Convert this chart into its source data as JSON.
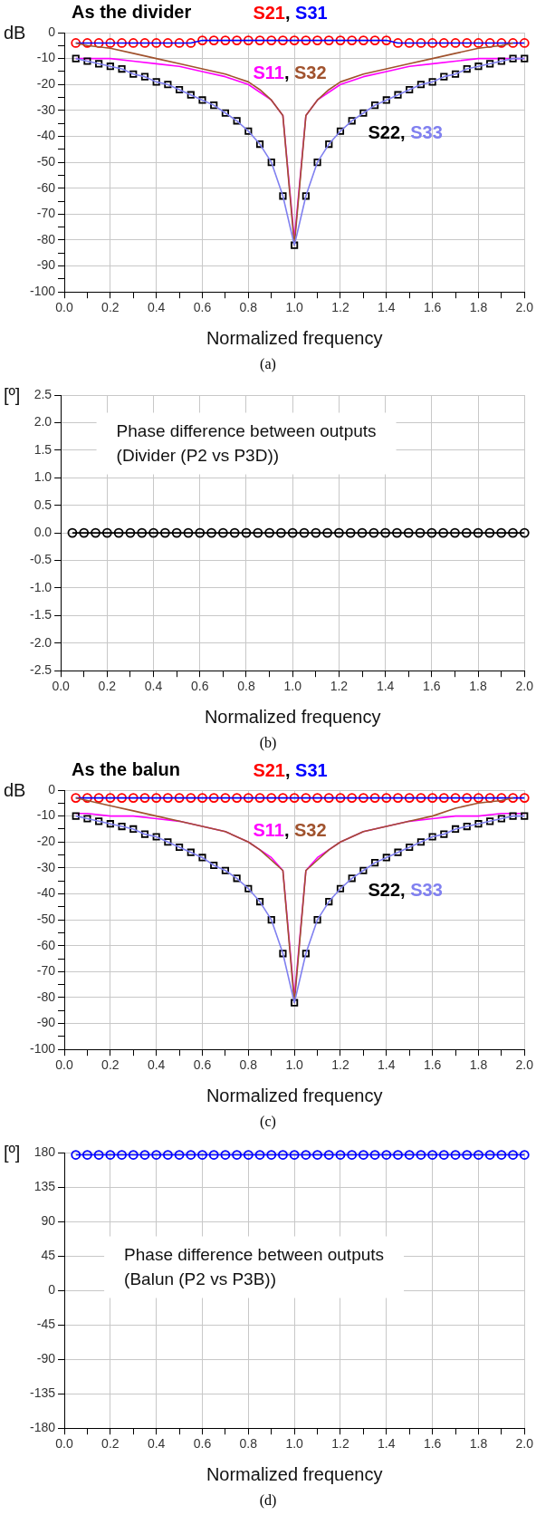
{
  "chart_data": [
    {
      "type": "line",
      "title": "As the divider",
      "xlabel": "Normalized frequency",
      "ylabel": "dB",
      "xlim": [
        0,
        2
      ],
      "ylim": [
        -100,
        0
      ],
      "xticks": [
        {
          "value": 0,
          "label": "0.0"
        },
        {
          "value": 0.1,
          "label": null
        },
        {
          "value": 0.2,
          "label": "0.2"
        },
        {
          "value": 0.3,
          "label": null
        },
        {
          "value": 0.4,
          "label": "0.4"
        },
        {
          "value": 0.5,
          "label": null
        },
        {
          "value": 0.6,
          "label": "0.6"
        },
        {
          "value": 0.7,
          "label": null
        },
        {
          "value": 0.8,
          "label": "0.8"
        },
        {
          "value": 0.9,
          "label": null
        },
        {
          "value": 1,
          "label": "1.0"
        },
        {
          "value": 1.1,
          "label": null
        },
        {
          "value": 1.2,
          "label": "1.2"
        },
        {
          "value": 1.3,
          "label": null
        },
        {
          "value": 1.4,
          "label": "1.4"
        },
        {
          "value": 1.5,
          "label": null
        },
        {
          "value": 1.6,
          "label": "1.6"
        },
        {
          "value": 1.7,
          "label": null
        },
        {
          "value": 1.8,
          "label": "1.8"
        },
        {
          "value": 1.9,
          "label": null
        },
        {
          "value": 2,
          "label": "2.0"
        }
      ],
      "yticks": [
        -100,
        {
          "value": -95,
          "label": null
        },
        -90,
        {
          "value": -85,
          "label": null
        },
        -80,
        {
          "value": -75,
          "label": null
        },
        -70,
        {
          "value": -65,
          "label": null
        },
        -60,
        {
          "value": -55,
          "label": null
        },
        -50,
        {
          "value": -45,
          "label": null
        },
        -40,
        {
          "value": -35,
          "label": null
        },
        -30,
        {
          "value": -25,
          "label": null
        },
        -20,
        {
          "value": -15,
          "label": null
        },
        -10,
        {
          "value": -5,
          "label": null
        },
        0
      ],
      "grid": true,
      "legend": false,
      "x": [
        0.05,
        0.1,
        0.15,
        0.2,
        0.25,
        0.3,
        0.35,
        0.4,
        0.45,
        0.5,
        0.55,
        0.6,
        0.65,
        0.7,
        0.75,
        0.8,
        0.85,
        0.9,
        0.95,
        1,
        1.05,
        1.1,
        1.15,
        1.2,
        1.25,
        1.3,
        1.35,
        1.4,
        1.45,
        1.5,
        1.55,
        1.6,
        1.65,
        1.7,
        1.75,
        1.8,
        1.85,
        1.9,
        1.95,
        2
      ],
      "series": [
        {
          "name": "S21",
          "type": "scatter",
          "color": "#ff0000",
          "marker": "circle",
          "values": [
            -4,
            -4,
            -4,
            -4,
            -4,
            -4,
            -4,
            -4,
            -4,
            -4,
            -4,
            -3,
            -3,
            -3,
            -3,
            -3,
            -3,
            -3,
            -3,
            -3,
            -3,
            -3,
            -3,
            -3,
            -3,
            -3,
            -3,
            -3,
            -4,
            -4,
            -4,
            -4,
            -4,
            -4,
            -4,
            -4,
            -4,
            -4,
            -4,
            -4
          ]
        },
        {
          "name": "S31",
          "color": "#0000ff",
          "x": [
            0.05,
            0.55,
            0.6,
            1.4,
            1.45,
            2
          ],
          "values": [
            -4,
            -4,
            -3,
            -3,
            -4,
            -4
          ]
        },
        {
          "name": "S11",
          "color": "#ff00ff",
          "x": [
            0.05,
            0.1,
            0.2,
            0.3,
            0.4,
            0.5,
            0.6,
            0.7,
            0.8,
            0.9,
            0.95,
            1,
            1.05,
            1.1,
            1.2,
            1.3,
            1.4,
            1.5,
            1.6,
            1.7,
            1.8,
            1.9,
            1.95,
            2
          ],
          "values": [
            -10,
            -10,
            -10,
            -11,
            -12,
            -13,
            -15,
            -17,
            -20,
            -26,
            -32,
            -80,
            -32,
            -26,
            -20,
            -17,
            -15,
            -13,
            -12,
            -11,
            -10,
            -10,
            -10,
            -10
          ]
        },
        {
          "name": "S32",
          "color": "#a0522d",
          "x": [
            0.05,
            0.1,
            0.2,
            0.3,
            0.4,
            0.5,
            0.6,
            0.7,
            0.8,
            0.85,
            0.9,
            0.95,
            1,
            1.05,
            1.1,
            1.15,
            1.2,
            1.3,
            1.4,
            1.5,
            1.6,
            1.7,
            1.8,
            1.9,
            1.95
          ],
          "values": [
            -4,
            -5,
            -6,
            -8,
            -10,
            -12,
            -14,
            -16,
            -19,
            -22,
            -26,
            -32,
            -82,
            -32,
            -26,
            -22,
            -19,
            -16,
            -14,
            -12,
            -10,
            -8,
            -6,
            -5,
            -4
          ]
        },
        {
          "name": "S22",
          "type": "scatter",
          "color": "#000000",
          "marker": "square",
          "values": [
            -10,
            -11,
            -12,
            -13,
            -14,
            -16,
            -17,
            -19,
            -20,
            -22,
            -24,
            -26,
            -28,
            -31,
            -34,
            -38,
            -43,
            -50,
            -63,
            -82,
            -63,
            -50,
            -43,
            -38,
            -34,
            -31,
            -28,
            -26,
            -24,
            -22,
            -20,
            -19,
            -17,
            -16,
            -14,
            -13,
            -12,
            -11,
            -10,
            -10
          ]
        },
        {
          "name": "S33",
          "color": "#8080f0",
          "values": [
            -10,
            -11,
            -12,
            -13,
            -14,
            -16,
            -17,
            -19,
            -20,
            -22,
            -24,
            -26,
            -28,
            -31,
            -34,
            -38,
            -43,
            -50,
            -63,
            -82,
            -63,
            -50,
            -43,
            -38,
            -34,
            -31,
            -28,
            -26,
            -24,
            -22,
            -20,
            -19,
            -17,
            -16,
            -14,
            -13,
            -12,
            -11,
            -10,
            -10
          ]
        }
      ],
      "annotations": [
        ",",
        ",",
        ",",
        "(a)"
      ]
    },
    {
      "type": "line",
      "xlabel": "Normalized frequency",
      "ylabel": "[º]",
      "xlim": [
        0,
        2
      ],
      "ylim": [
        -2.5,
        2.5
      ],
      "xticks": [
        {
          "value": 0,
          "label": "0.0"
        },
        {
          "value": 0.1,
          "label": null
        },
        {
          "value": 0.2,
          "label": "0.2"
        },
        {
          "value": 0.3,
          "label": null
        },
        {
          "value": 0.4,
          "label": "0.4"
        },
        {
          "value": 0.5,
          "label": null
        },
        {
          "value": 0.6,
          "label": "0.6"
        },
        {
          "value": 0.7,
          "label": null
        },
        {
          "value": 0.8,
          "label": "0.8"
        },
        {
          "value": 0.9,
          "label": null
        },
        {
          "value": 1,
          "label": "1.0"
        },
        {
          "value": 1.1,
          "label": null
        },
        {
          "value": 1.2,
          "label": "1.2"
        },
        {
          "value": 1.3,
          "label": null
        },
        {
          "value": 1.4,
          "label": "1.4"
        },
        {
          "value": 1.5,
          "label": null
        },
        {
          "value": 1.6,
          "label": "1.6"
        },
        {
          "value": 1.7,
          "label": null
        },
        {
          "value": 1.8,
          "label": "1.8"
        },
        {
          "value": 1.9,
          "label": null
        },
        {
          "value": 2,
          "label": "2.0"
        }
      ],
      "yticks": [
        {
          "value": -2.5,
          "label": "-2.5"
        },
        {
          "value": -2,
          "label": "-2.0"
        },
        {
          "value": -1.5,
          "label": "-1.5"
        },
        {
          "value": -1,
          "label": "-1.0"
        },
        {
          "value": -0.5,
          "label": "-0.5"
        },
        {
          "value": 0,
          "label": "0.0"
        },
        {
          "value": 0.5,
          "label": "0.5"
        },
        {
          "value": 1,
          "label": "1.0"
        },
        {
          "value": 1.5,
          "label": "1.5"
        },
        {
          "value": 2,
          "label": "2.0"
        },
        {
          "value": 2.5,
          "label": "2.5"
        }
      ],
      "grid": true,
      "legend": false,
      "marker": "circle",
      "x": [
        0.05,
        0.1,
        0.15,
        0.2,
        0.25,
        0.3,
        0.35,
        0.4,
        0.45,
        0.5,
        0.55,
        0.6,
        0.65,
        0.7,
        0.75,
        0.8,
        0.85,
        0.9,
        0.95,
        1,
        1.05,
        1.1,
        1.15,
        1.2,
        1.25,
        1.3,
        1.35,
        1.4,
        1.45,
        1.5,
        1.55,
        1.6,
        1.65,
        1.7,
        1.75,
        1.8,
        1.85,
        1.9,
        1.95,
        2
      ],
      "series": [
        {
          "color": "#000000",
          "values": [
            0,
            0,
            0,
            0,
            0,
            0,
            0,
            0,
            0,
            0,
            0,
            0,
            0,
            0,
            0,
            0,
            0,
            0,
            0,
            0,
            0,
            0,
            0,
            0,
            0,
            0,
            0,
            0,
            0,
            0,
            0,
            0,
            0,
            0,
            0,
            0,
            0,
            0,
            0,
            0
          ]
        }
      ],
      "annotations": [
        "Phase difference between outputs\n(Divider (P2 vs P3D))",
        "(b)"
      ]
    },
    {
      "type": "line",
      "title": "As the balun",
      "xlabel": "Normalized frequency",
      "ylabel": "dB",
      "xlim": [
        0,
        2
      ],
      "ylim": [
        -100,
        0
      ],
      "xticks": [
        {
          "value": 0,
          "label": "0.0"
        },
        {
          "value": 0.1,
          "label": null
        },
        {
          "value": 0.2,
          "label": "0.2"
        },
        {
          "value": 0.3,
          "label": null
        },
        {
          "value": 0.4,
          "label": "0.4"
        },
        {
          "value": 0.5,
          "label": null
        },
        {
          "value": 0.6,
          "label": "0.6"
        },
        {
          "value": 0.7,
          "label": null
        },
        {
          "value": 0.8,
          "label": "0.8"
        },
        {
          "value": 0.9,
          "label": null
        },
        {
          "value": 1,
          "label": "1.0"
        },
        {
          "value": 1.1,
          "label": null
        },
        {
          "value": 1.2,
          "label": "1.2"
        },
        {
          "value": 1.3,
          "label": null
        },
        {
          "value": 1.4,
          "label": "1.4"
        },
        {
          "value": 1.5,
          "label": null
        },
        {
          "value": 1.6,
          "label": "1.6"
        },
        {
          "value": 1.7,
          "label": null
        },
        {
          "value": 1.8,
          "label": "1.8"
        },
        {
          "value": 1.9,
          "label": null
        },
        {
          "value": 2,
          "label": "2.0"
        }
      ],
      "yticks": [
        -100,
        {
          "value": -95,
          "label": null
        },
        -90,
        {
          "value": -85,
          "label": null
        },
        -80,
        {
          "value": -75,
          "label": null
        },
        -70,
        {
          "value": -65,
          "label": null
        },
        -60,
        {
          "value": -55,
          "label": null
        },
        -50,
        {
          "value": -45,
          "label": null
        },
        -40,
        {
          "value": -35,
          "label": null
        },
        -30,
        {
          "value": -25,
          "label": null
        },
        -20,
        {
          "value": -15,
          "label": null
        },
        -10,
        {
          "value": -5,
          "label": null
        },
        0
      ],
      "grid": true,
      "legend": false,
      "x": [
        0.05,
        0.1,
        0.15,
        0.2,
        0.25,
        0.3,
        0.35,
        0.4,
        0.45,
        0.5,
        0.55,
        0.6,
        0.65,
        0.7,
        0.75,
        0.8,
        0.85,
        0.9,
        0.95,
        1,
        1.05,
        1.1,
        1.15,
        1.2,
        1.25,
        1.3,
        1.35,
        1.4,
        1.45,
        1.5,
        1.55,
        1.6,
        1.65,
        1.7,
        1.75,
        1.8,
        1.85,
        1.9,
        1.95,
        2
      ],
      "series": [
        {
          "name": "S21",
          "type": "scatter",
          "color": "#ff0000",
          "marker": "circle",
          "values": [
            -3,
            -3,
            -3,
            -3,
            -3,
            -3,
            -3,
            -3,
            -3,
            -3,
            -3,
            -3,
            -3,
            -3,
            -3,
            -3,
            -3,
            -3,
            -3,
            -3,
            -3,
            -3,
            -3,
            -3,
            -3,
            -3,
            -3,
            -3,
            -3,
            -3,
            -3,
            -3,
            -3,
            -3,
            -3,
            -3,
            -3,
            -3,
            -3,
            -3
          ]
        },
        {
          "name": "S31",
          "color": "#0000ff",
          "x": [
            0.05,
            2
          ],
          "values": [
            -3,
            -3
          ]
        },
        {
          "name": "S11",
          "color": "#ff00ff",
          "x": [
            0.05,
            0.1,
            0.2,
            0.3,
            0.4,
            0.5,
            0.6,
            0.7,
            0.8,
            0.9,
            0.95,
            1,
            1.05,
            1.1,
            1.2,
            1.3,
            1.4,
            1.5,
            1.6,
            1.7,
            1.8,
            1.9,
            1.95,
            2
          ],
          "values": [
            -9,
            -9,
            -10,
            -10,
            -11,
            -12,
            -14,
            -16,
            -20,
            -26,
            -31,
            -80,
            -31,
            -26,
            -20,
            -16,
            -14,
            -12,
            -11,
            -10,
            -10,
            -9,
            -9,
            -9
          ]
        },
        {
          "name": "S32",
          "color": "#a0522d",
          "x": [
            0.05,
            0.1,
            0.2,
            0.3,
            0.4,
            0.5,
            0.6,
            0.7,
            0.8,
            0.85,
            0.9,
            0.95,
            1,
            1.05,
            1.1,
            1.15,
            1.2,
            1.3,
            1.4,
            1.5,
            1.6,
            1.7,
            1.8,
            1.9,
            1.95
          ],
          "values": [
            -3,
            -4,
            -6,
            -8,
            -10,
            -12,
            -14,
            -16,
            -20,
            -23,
            -27,
            -31,
            -82,
            -31,
            -27,
            -23,
            -20,
            -16,
            -14,
            -12,
            -10,
            -7,
            -5,
            -4,
            -3
          ]
        },
        {
          "name": "S22",
          "type": "scatter",
          "color": "#000000",
          "marker": "square",
          "values": [
            -10,
            -11,
            -12,
            -13,
            -14,
            -15,
            -17,
            -18,
            -20,
            -22,
            -24,
            -26,
            -29,
            -31,
            -34,
            -38,
            -43,
            -50,
            -63,
            -82,
            -63,
            -50,
            -43,
            -38,
            -34,
            -31,
            -28,
            -26,
            -24,
            -22,
            -20,
            -18,
            -17,
            -15,
            -14,
            -13,
            -12,
            -11,
            -10,
            -10
          ]
        },
        {
          "name": "S33",
          "color": "#8080f0",
          "values": [
            -10,
            -11,
            -12,
            -13,
            -14,
            -15,
            -17,
            -18,
            -20,
            -22,
            -24,
            -26,
            -29,
            -31,
            -34,
            -38,
            -43,
            -50,
            -63,
            -82,
            -63,
            -50,
            -43,
            -38,
            -34,
            -31,
            -28,
            -26,
            -24,
            -22,
            -20,
            -18,
            -17,
            -15,
            -14,
            -13,
            -12,
            -11,
            -10,
            -10
          ]
        }
      ],
      "annotations": [
        ",",
        ",",
        ",",
        "(c)"
      ]
    },
    {
      "type": "line",
      "xlabel": "Normalized frequency",
      "ylabel": "[º]",
      "xlim": [
        0,
        2
      ],
      "ylim": [
        -180,
        180
      ],
      "xticks": [
        {
          "value": 0,
          "label": "0.0"
        },
        {
          "value": 0.1,
          "label": null
        },
        {
          "value": 0.2,
          "label": "0.2"
        },
        {
          "value": 0.3,
          "label": null
        },
        {
          "value": 0.4,
          "label": "0.4"
        },
        {
          "value": 0.5,
          "label": null
        },
        {
          "value": 0.6,
          "label": "0.6"
        },
        {
          "value": 0.7,
          "label": null
        },
        {
          "value": 0.8,
          "label": "0.8"
        },
        {
          "value": 0.9,
          "label": null
        },
        {
          "value": 1,
          "label": "1.0"
        },
        {
          "value": 1.1,
          "label": null
        },
        {
          "value": 1.2,
          "label": "1.2"
        },
        {
          "value": 1.3,
          "label": null
        },
        {
          "value": 1.4,
          "label": "1.4"
        },
        {
          "value": 1.5,
          "label": null
        },
        {
          "value": 1.6,
          "label": "1.6"
        },
        {
          "value": 1.7,
          "label": null
        },
        {
          "value": 1.8,
          "label": "1.8"
        },
        {
          "value": 1.9,
          "label": null
        },
        {
          "value": 2,
          "label": "2.0"
        }
      ],
      "yticks": [
        -180,
        -135,
        -90,
        -45,
        0,
        45,
        90,
        135,
        180
      ],
      "grid": true,
      "legend": false,
      "marker": "circle",
      "x": [
        0.05,
        0.1,
        0.15,
        0.2,
        0.25,
        0.3,
        0.35,
        0.4,
        0.45,
        0.5,
        0.55,
        0.6,
        0.65,
        0.7,
        0.75,
        0.8,
        0.85,
        0.9,
        0.95,
        1,
        1.05,
        1.1,
        1.15,
        1.2,
        1.25,
        1.3,
        1.35,
        1.4,
        1.45,
        1.5,
        1.55,
        1.6,
        1.65,
        1.7,
        1.75,
        1.8,
        1.85,
        1.9,
        1.95,
        2
      ],
      "series": [
        {
          "color": "#0000ff",
          "values": [
            177,
            177,
            177,
            177,
            177,
            177,
            177,
            177,
            177,
            177,
            177,
            177,
            177,
            177,
            177,
            177,
            177,
            177,
            177,
            177,
            177,
            177,
            177,
            177,
            177,
            177,
            177,
            177,
            177,
            177,
            177,
            177,
            177,
            177,
            177,
            177,
            177,
            177,
            177,
            177
          ]
        }
      ],
      "annotations": [
        "Phase difference between outputs\n(Balun (P2 vs P3B))",
        "(d)"
      ]
    }
  ]
}
